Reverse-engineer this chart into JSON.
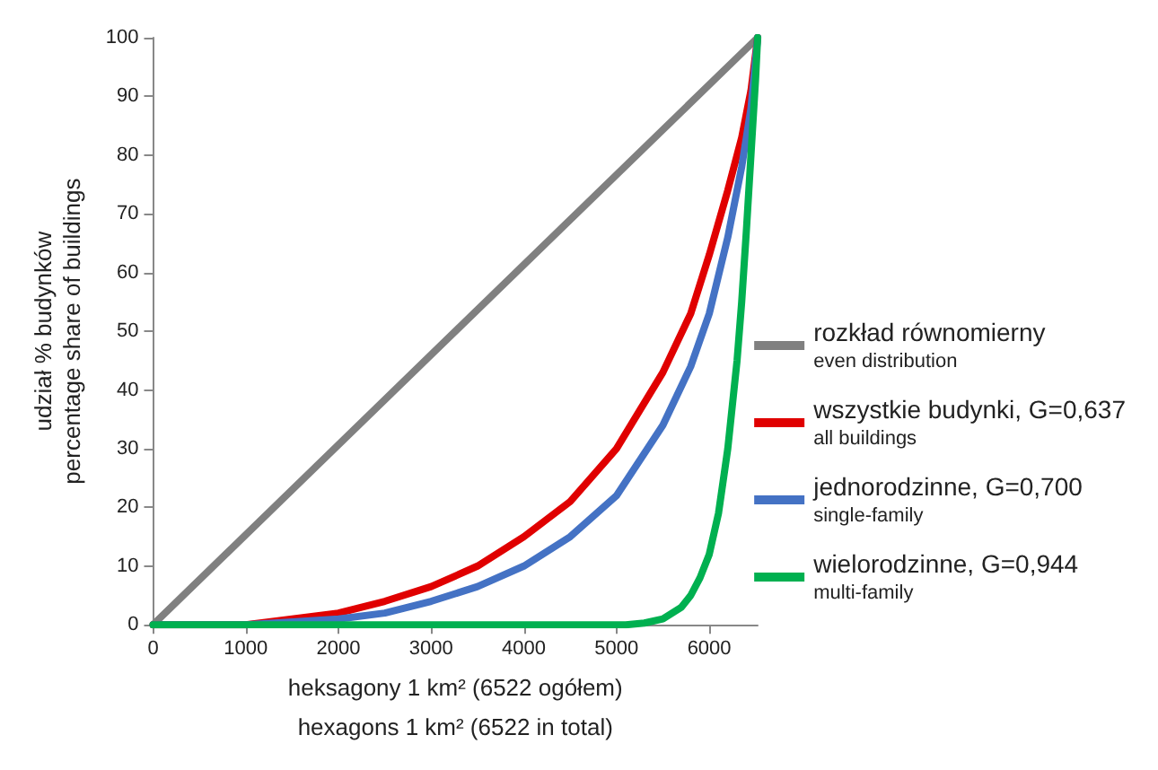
{
  "chart_data": {
    "type": "line",
    "xlabel": "heksagony 1 km² (6522 ogółem)\nhexagons 1 km² (6522 in total)",
    "ylabel": "udział % budynków\npercentage share of buildings",
    "xlim": [
      0,
      6522
    ],
    "xticks": [
      0,
      1000,
      2000,
      3000,
      4000,
      5000,
      6000
    ],
    "ylim": [
      0,
      100
    ],
    "yticks": [
      0,
      10,
      20,
      30,
      40,
      50,
      60,
      70,
      80,
      90,
      100
    ],
    "grid": false,
    "legend": "right",
    "marker": "none",
    "line_style": "solid",
    "series": [
      {
        "name": "rozkład równomierny\neven distribution",
        "color": "#808080",
        "x": [
          0,
          6522
        ],
        "values": [
          0,
          100
        ]
      },
      {
        "name": "wszystkie budynki, G=0,637\nall buildings",
        "color": "#e00000",
        "x": [
          0,
          1000,
          1500,
          2000,
          2500,
          3000,
          3500,
          4000,
          4500,
          5000,
          5500,
          5800,
          6000,
          6200,
          6350,
          6450,
          6522
        ],
        "values": [
          0,
          0,
          1,
          2,
          4,
          6.5,
          10,
          15,
          21,
          30,
          43,
          53,
          63,
          74,
          83,
          91,
          100
        ]
      },
      {
        "name": "jednorodzinne, G=0,700\nsingle-family",
        "color": "#4472c4",
        "x": [
          0,
          1000,
          1500,
          2000,
          2500,
          3000,
          3500,
          4000,
          4500,
          5000,
          5500,
          5800,
          6000,
          6200,
          6350,
          6450,
          6522
        ],
        "values": [
          0,
          0,
          0.5,
          1,
          2,
          4,
          6.5,
          10,
          15,
          22,
          34,
          44,
          53,
          66,
          78,
          88,
          100
        ]
      },
      {
        "name": "wielorodzinne, G=0,944\nmulti-family",
        "color": "#00b050",
        "x": [
          0,
          5100,
          5300,
          5500,
          5700,
          5800,
          5900,
          6000,
          6100,
          6200,
          6300,
          6350,
          6400,
          6450,
          6500,
          6522
        ],
        "values": [
          0,
          0,
          0.3,
          1,
          3,
          5,
          8,
          12,
          19,
          30,
          45,
          55,
          67,
          80,
          93,
          100
        ]
      }
    ]
  }
}
